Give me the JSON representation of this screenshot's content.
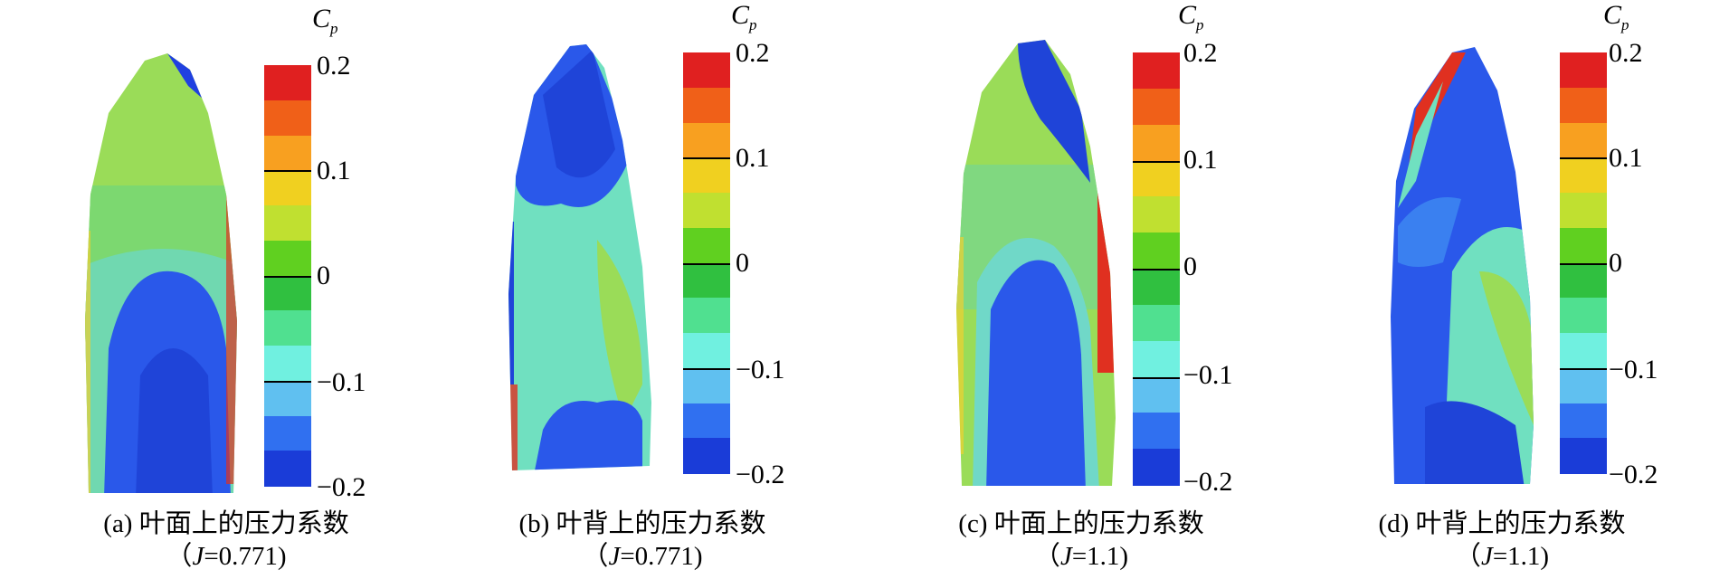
{
  "colorbar": {
    "title_main": "C",
    "title_sub": "p",
    "ticks": [
      "0.2",
      "0.1",
      "0",
      "−0.1",
      "−0.2"
    ],
    "colors": [
      "#e02020",
      "#f06018",
      "#f8a020",
      "#f0d020",
      "#c0e030",
      "#60d020",
      "#30c040",
      "#50e090",
      "#70f0e0",
      "#60c0f0",
      "#3070f0",
      "#1a3cd8"
    ]
  },
  "panels": [
    {
      "id": "a",
      "caption_line1": "(a) 叶面上的压力系数",
      "caption_j_label": "J",
      "caption_line2": "=0.771)",
      "caption_open": "（"
    },
    {
      "id": "b",
      "caption_line1": "(b) 叶背上的压力系数",
      "caption_j_label": "J",
      "caption_line2": "=0.771)",
      "caption_open": "（"
    },
    {
      "id": "c",
      "caption_line1": "(c) 叶面上的压力系数",
      "caption_j_label": "J",
      "caption_line2": "=1.1)",
      "caption_open": "（"
    },
    {
      "id": "d",
      "caption_line1": "(d) 叶背上的压力系数",
      "caption_j_label": "J",
      "caption_line2": "=1.1)",
      "caption_open": "（"
    }
  ]
}
